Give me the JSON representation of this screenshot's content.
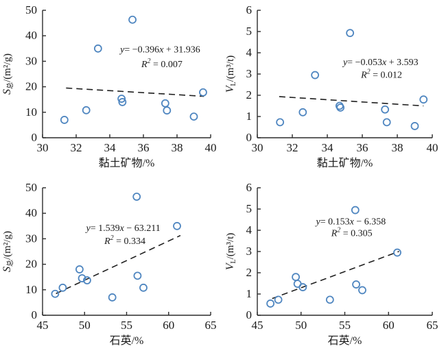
{
  "style": {
    "background": "#ffffff",
    "point_color": "#4f86c0",
    "trend_color": "#1f1f1f",
    "axis_color": "#2b2b2b",
    "text_color": "#1a1a1a"
  },
  "chart_data": [
    {
      "type": "scatter",
      "position": "top-left",
      "xlabel": "黏土矿物/%",
      "ylabel": {
        "letter": "S",
        "sub": "总",
        "rest": "/(m²/g)"
      },
      "xlim": [
        30,
        40
      ],
      "ylim": [
        0,
        50
      ],
      "xticks": [
        30,
        32,
        34,
        36,
        38,
        40
      ],
      "yticks": [
        0,
        10,
        20,
        30,
        40,
        50
      ],
      "grid": false,
      "points": [
        [
          31.3,
          7.0
        ],
        [
          32.6,
          10.8
        ],
        [
          33.3,
          35.0
        ],
        [
          34.7,
          15.3
        ],
        [
          34.75,
          14.0
        ],
        [
          35.35,
          46.3
        ],
        [
          37.3,
          13.5
        ],
        [
          37.4,
          10.7
        ],
        [
          39.0,
          8.3
        ],
        [
          39.55,
          17.8
        ]
      ],
      "trend": {
        "slope": -0.396,
        "intercept": 31.936,
        "x_start": 31.4,
        "x_end": 39.6,
        "style": "dashed"
      },
      "equation": {
        "lhs": "y",
        "mid": "= −0.396",
        "var": "x",
        "tail": " + 31.936",
        "x": 37.0,
        "y": 33.5
      },
      "r_squared": {
        "lhs": "R",
        "sup": "2",
        "tail": " = 0.007",
        "x": 37.1,
        "y": 27.7
      }
    },
    {
      "type": "scatter",
      "position": "top-right",
      "xlabel": "黏土矿物/%",
      "ylabel": {
        "letter": "V",
        "sub": "L",
        "rest": "/(m³/t)"
      },
      "xlim": [
        30,
        40
      ],
      "ylim": [
        0,
        6
      ],
      "xticks": [
        30,
        32,
        34,
        36,
        38,
        40
      ],
      "yticks": [
        0,
        1,
        2,
        3,
        4,
        5,
        6
      ],
      "grid": false,
      "points": [
        [
          31.3,
          0.73
        ],
        [
          32.6,
          1.2
        ],
        [
          33.3,
          2.95
        ],
        [
          34.7,
          1.5
        ],
        [
          34.75,
          1.42
        ],
        [
          35.3,
          4.93
        ],
        [
          37.3,
          1.33
        ],
        [
          37.4,
          0.73
        ],
        [
          39.0,
          0.55
        ],
        [
          39.5,
          1.8
        ]
      ],
      "trend": {
        "slope": -0.053,
        "intercept": 3.593,
        "x_start": 31.25,
        "x_end": 39.5,
        "style": "dashed"
      },
      "equation": {
        "lhs": "y",
        "mid": "= −0.053",
        "var": "x",
        "tail": " + 3.593",
        "x": 37.05,
        "y": 3.42
      },
      "r_squared": {
        "lhs": "R",
        "sup": "2",
        "tail": " = 0.012",
        "x": 37.1,
        "y": 2.82
      }
    },
    {
      "type": "scatter",
      "position": "bottom-left",
      "xlabel": "石英/%",
      "ylabel": {
        "letter": "S",
        "sub": "总",
        "rest": "/(m²/g)"
      },
      "xlim": [
        45,
        65
      ],
      "ylim": [
        0,
        50
      ],
      "xticks": [
        45,
        50,
        55,
        60,
        65
      ],
      "yticks": [
        0,
        10,
        20,
        30,
        40,
        50
      ],
      "grid": false,
      "points": [
        [
          46.5,
          8.4
        ],
        [
          47.4,
          10.8
        ],
        [
          49.4,
          18.0
        ],
        [
          49.7,
          14.5
        ],
        [
          50.3,
          13.7
        ],
        [
          53.3,
          7.0
        ],
        [
          56.2,
          46.5
        ],
        [
          56.3,
          15.5
        ],
        [
          57.0,
          10.8
        ],
        [
          61.0,
          35.0
        ]
      ],
      "trend": {
        "slope": 1.539,
        "intercept": -63.211,
        "x_start": 46.6,
        "x_end": 61.4,
        "style": "dashed"
      },
      "equation": {
        "lhs": "y",
        "mid": "= 1.539",
        "var": "x",
        "tail": " − 63.211",
        "x": 54.6,
        "y": 33.0
      },
      "r_squared": {
        "lhs": "R",
        "sup": "2",
        "tail": " = 0.334",
        "x": 54.8,
        "y": 28.0
      }
    },
    {
      "type": "scatter",
      "position": "bottom-right",
      "xlabel": "石英/%",
      "ylabel": {
        "letter": "V",
        "sub": "L",
        "rest": "/(m³/t)"
      },
      "xlim": [
        45,
        65
      ],
      "ylim": [
        0,
        6
      ],
      "xticks": [
        45,
        50,
        55,
        60,
        65
      ],
      "yticks": [
        0,
        1,
        2,
        3,
        4,
        5,
        6
      ],
      "grid": false,
      "points": [
        [
          46.5,
          0.55
        ],
        [
          47.4,
          0.73
        ],
        [
          49.4,
          1.8
        ],
        [
          49.6,
          1.48
        ],
        [
          50.2,
          1.32
        ],
        [
          53.3,
          0.73
        ],
        [
          56.2,
          4.95
        ],
        [
          56.3,
          1.45
        ],
        [
          57.0,
          1.18
        ],
        [
          61.0,
          2.95
        ]
      ],
      "trend": {
        "slope": 0.153,
        "intercept": -6.358,
        "x_start": 46.7,
        "x_end": 61.2,
        "style": "dashed"
      },
      "equation": {
        "lhs": "y",
        "mid": "= 0.153",
        "var": "x",
        "tail": " − 6.358",
        "x": 55.7,
        "y": 4.27
      },
      "r_squared": {
        "lhs": "R",
        "sup": "2",
        "tail": " = 0.305",
        "x": 55.8,
        "y": 3.72
      }
    }
  ]
}
